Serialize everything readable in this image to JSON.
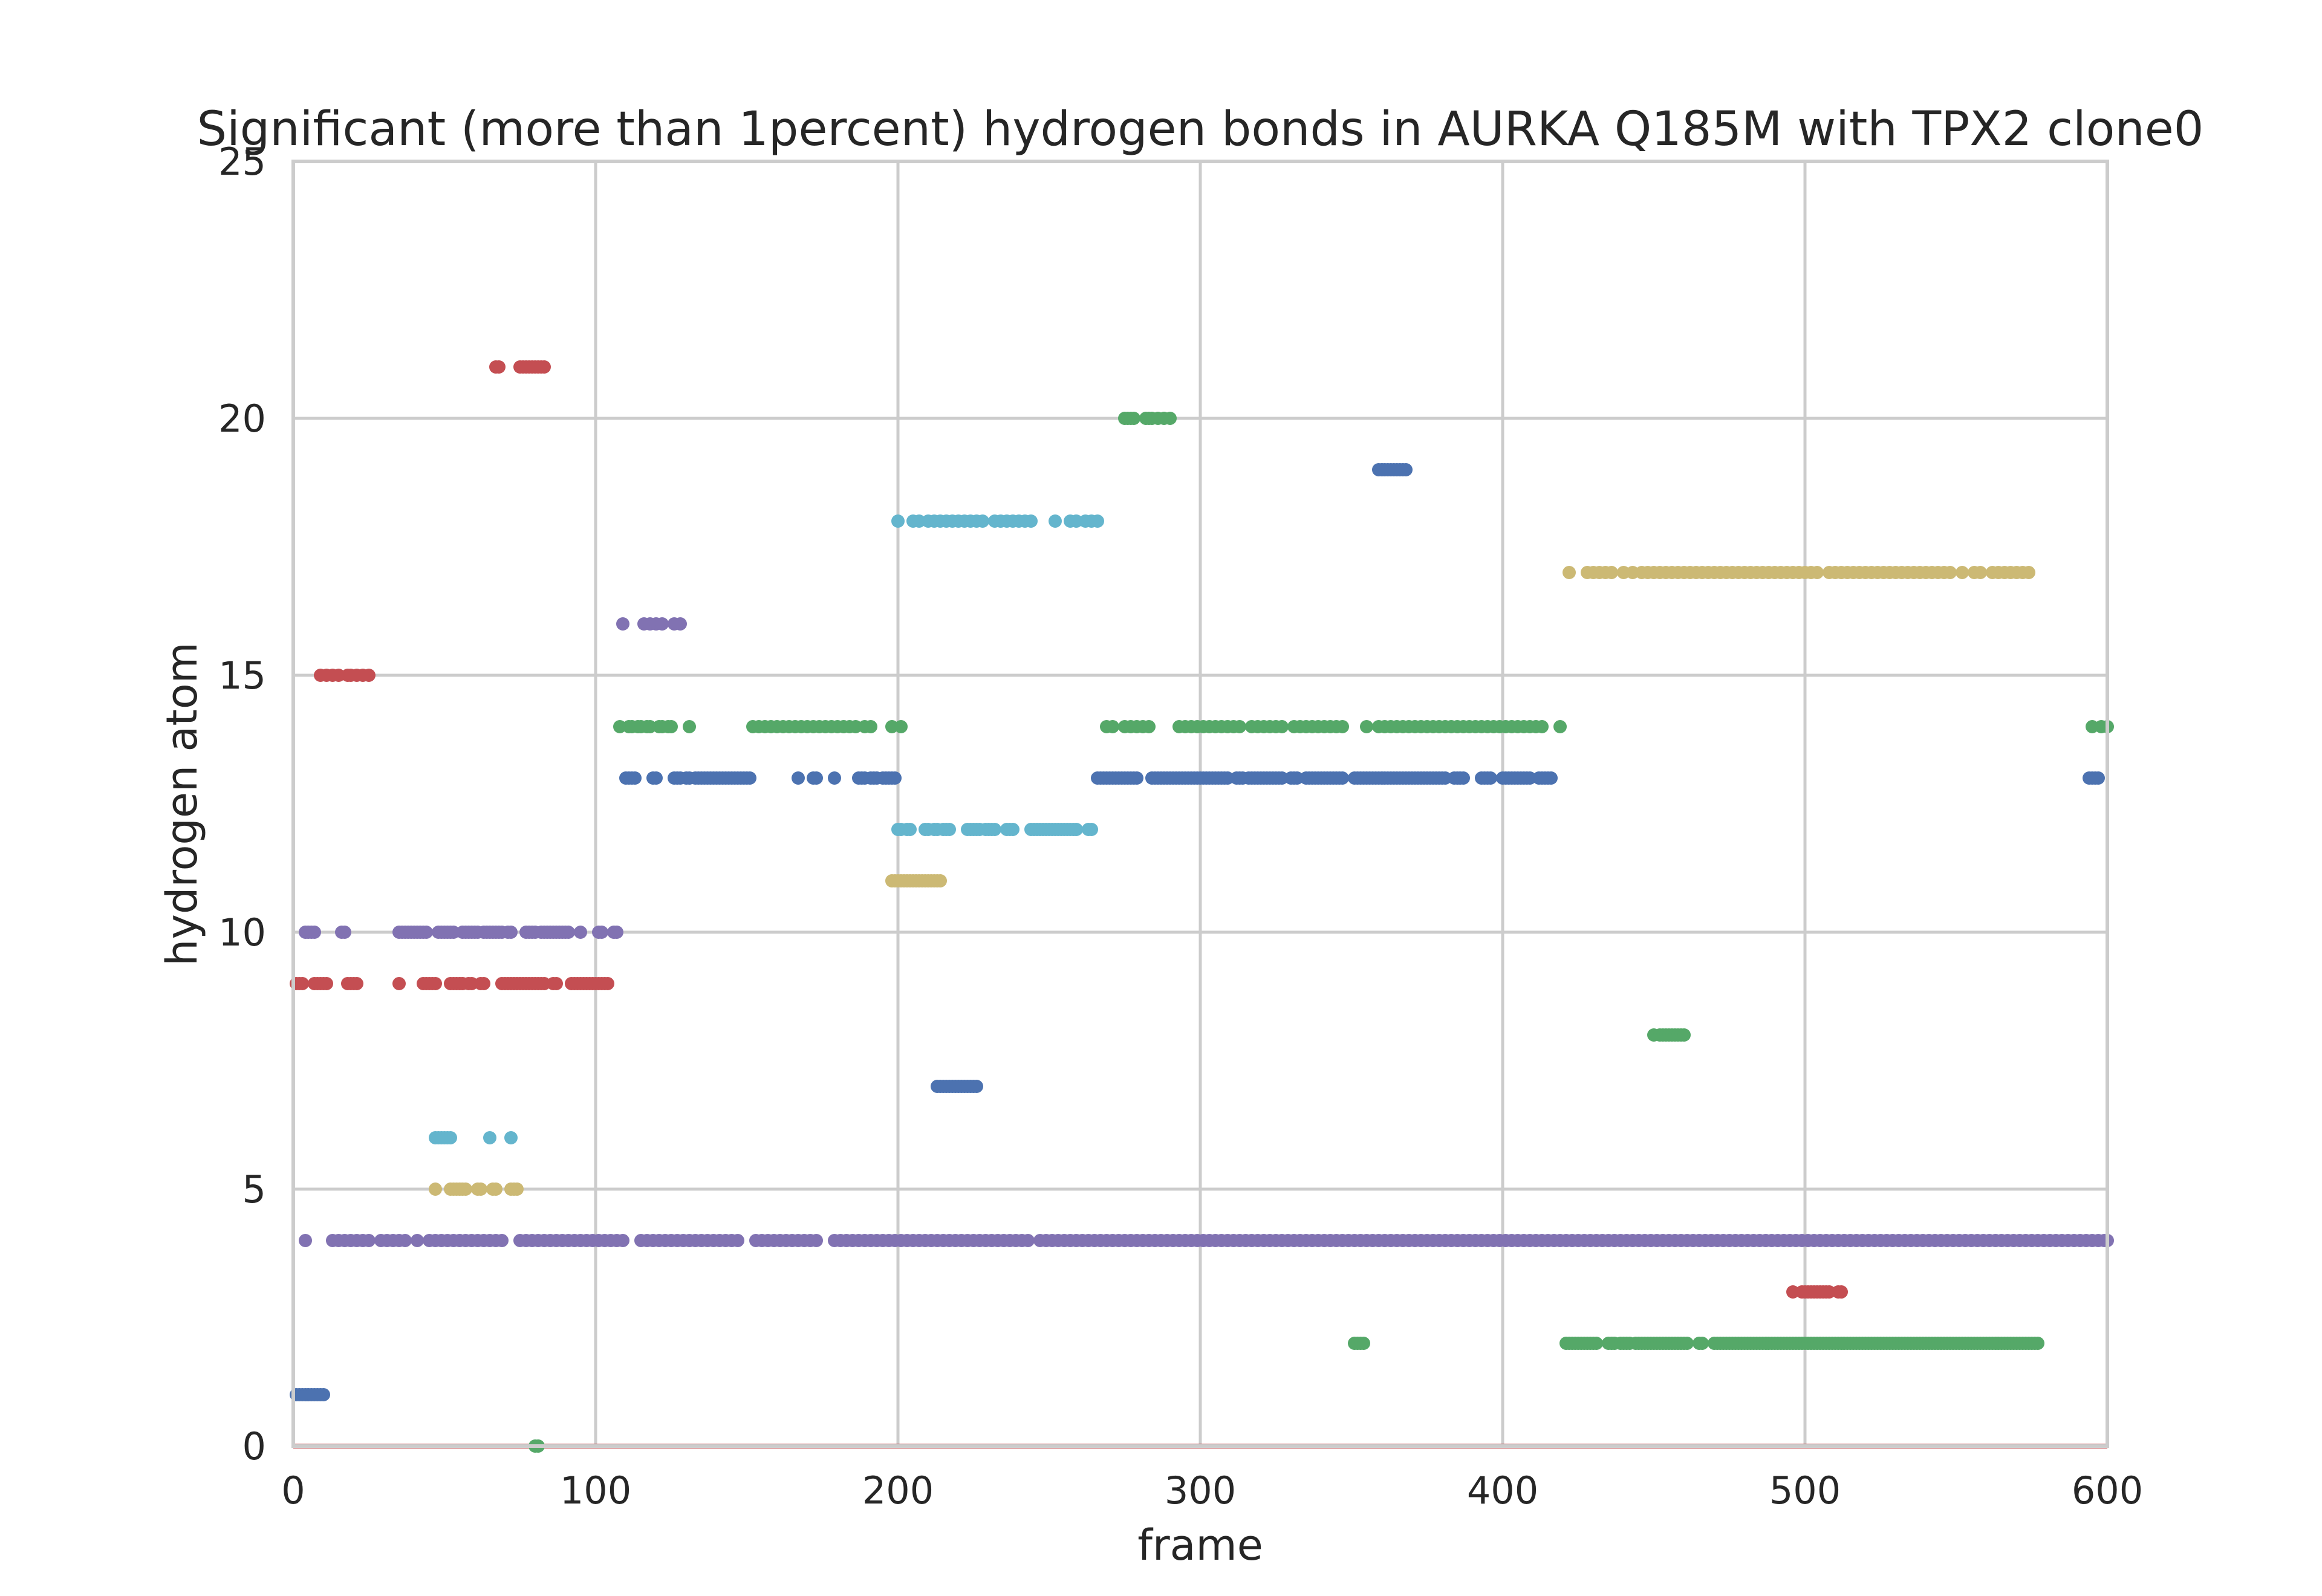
{
  "chart_data": {
    "type": "scatter",
    "title": "Significant (more than 1percent) hydrogen bonds in AURKA Q185M with TPX2 clone0",
    "xlabel": "frame",
    "ylabel": "hydrogen atom",
    "xlim": [
      0,
      600
    ],
    "ylim": [
      0,
      25
    ],
    "xticks": [
      "0",
      "100",
      "200",
      "300",
      "400",
      "500",
      "600"
    ],
    "yticks": [
      "0",
      "5",
      "10",
      "15",
      "20",
      "25"
    ],
    "grid": true,
    "legend": "none",
    "baseline": {
      "y": 0,
      "color": "#c44e52",
      "x_range": [
        0,
        600
      ]
    },
    "series": [
      {
        "y": 21,
        "color": "#c44e52",
        "x": [
          67,
          68,
          75,
          76,
          77,
          78,
          79,
          80,
          81,
          82,
          83
        ]
      },
      {
        "y": 20,
        "color": "#55a868",
        "x": [
          275,
          276,
          277,
          278,
          282,
          283,
          284,
          286,
          288,
          290
        ]
      },
      {
        "y": 19,
        "color": "#4c72b0",
        "x": [
          359,
          360,
          361,
          362,
          363,
          364,
          365,
          366,
          367,
          368
        ]
      },
      {
        "y": 18,
        "color": "#64b5cd",
        "x": [
          200,
          205,
          207,
          210,
          212,
          214,
          216,
          218,
          220,
          222,
          224,
          226,
          228,
          232,
          234,
          236,
          238,
          240,
          242,
          244,
          252,
          257,
          259,
          262,
          264,
          266
        ]
      },
      {
        "y": 17,
        "color": "#ccb974",
        "x": [
          422,
          428,
          430,
          432,
          434,
          436,
          440,
          443,
          446,
          448,
          450,
          452,
          454,
          456,
          458,
          460,
          462,
          464,
          466,
          468,
          470,
          472,
          474,
          476,
          478,
          480,
          482,
          484,
          486,
          488,
          490,
          492,
          494,
          496,
          498,
          500,
          502,
          504,
          508,
          510,
          512,
          514,
          516,
          518,
          520,
          522,
          524,
          526,
          528,
          530,
          532,
          534,
          536,
          538,
          540,
          542,
          544,
          546,
          548,
          552,
          556,
          558,
          562,
          564,
          566,
          568,
          570,
          572,
          574
        ]
      },
      {
        "y": 16,
        "color": "#8172b2",
        "x": [
          109,
          116,
          118,
          120,
          122,
          126,
          128
        ]
      },
      {
        "y": 15,
        "color": "#c44e52",
        "x": [
          9,
          11,
          13,
          15,
          18,
          19,
          21,
          23,
          25
        ]
      },
      {
        "y": 14,
        "color": "#55a868",
        "x": [
          108,
          111,
          112,
          114,
          115,
          117,
          118,
          121,
          122,
          124,
          125,
          131,
          152,
          154,
          156,
          158,
          160,
          162,
          164,
          166,
          168,
          170,
          172,
          174,
          176,
          178,
          180,
          182,
          184,
          186,
          189,
          191,
          198,
          201,
          269,
          271,
          275,
          277,
          279,
          281,
          283,
          293,
          295,
          297,
          299,
          301,
          303,
          305,
          307,
          309,
          311,
          313,
          317,
          319,
          321,
          323,
          325,
          327,
          331,
          333,
          335,
          337,
          339,
          341,
          343,
          345,
          347,
          355,
          359,
          361,
          363,
          365,
          367,
          369,
          371,
          373,
          375,
          377,
          379,
          381,
          383,
          385,
          387,
          389,
          391,
          393,
          395,
          397,
          399,
          401,
          403,
          405,
          407,
          409,
          411,
          413,
          419,
          595,
          598,
          600
        ]
      },
      {
        "y": 13,
        "color": "#4c72b0",
        "x": [
          110,
          111,
          112,
          113,
          119,
          120,
          126,
          127,
          128,
          130,
          131,
          133,
          134,
          135,
          136,
          137,
          138,
          139,
          140,
          141,
          142,
          143,
          144,
          145,
          146,
          147,
          148,
          149,
          150,
          151,
          167,
          172,
          173,
          179,
          187,
          188,
          189,
          191,
          192,
          193,
          195,
          196,
          197,
          198,
          199,
          266,
          267,
          268,
          269,
          270,
          271,
          272,
          273,
          274,
          275,
          276,
          277,
          278,
          279,
          284,
          285,
          286,
          287,
          288,
          289,
          290,
          291,
          292,
          293,
          294,
          295,
          296,
          297,
          298,
          299,
          300,
          301,
          302,
          303,
          304,
          305,
          306,
          307,
          308,
          309,
          312,
          313,
          314,
          316,
          317,
          318,
          319,
          320,
          321,
          322,
          323,
          324,
          325,
          326,
          327,
          330,
          331,
          332,
          335,
          336,
          337,
          338,
          339,
          340,
          341,
          342,
          343,
          344,
          345,
          346,
          347,
          351,
          352,
          353,
          354,
          355,
          356,
          357,
          358,
          359,
          360,
          361,
          362,
          363,
          364,
          365,
          366,
          367,
          368,
          369,
          370,
          371,
          372,
          373,
          374,
          375,
          376,
          377,
          378,
          379,
          380,
          381,
          384,
          385,
          386,
          387,
          393,
          394,
          395,
          396,
          400,
          401,
          402,
          403,
          404,
          405,
          406,
          407,
          408,
          409,
          412,
          413,
          414,
          415,
          416,
          594,
          595,
          596,
          597
        ]
      },
      {
        "y": 12,
        "color": "#64b5cd",
        "x": [
          200,
          201,
          203,
          204,
          209,
          210,
          212,
          213,
          215,
          216,
          217,
          223,
          224,
          225,
          226,
          227,
          229,
          230,
          231,
          232,
          236,
          237,
          238,
          244,
          245,
          246,
          247,
          248,
          249,
          250,
          251,
          252,
          253,
          254,
          255,
          256,
          257,
          258,
          259,
          263,
          264
        ]
      },
      {
        "y": 11,
        "color": "#ccb974",
        "x": [
          198,
          199,
          200,
          201,
          202,
          203,
          204,
          205,
          206,
          207,
          208,
          209,
          210,
          211,
          212,
          213,
          214
        ]
      },
      {
        "y": 10,
        "color": "#8172b2",
        "x": [
          4,
          5,
          6,
          7,
          16,
          17,
          35,
          36,
          37,
          38,
          39,
          40,
          41,
          42,
          43,
          44,
          48,
          49,
          50,
          51,
          52,
          53,
          56,
          57,
          58,
          59,
          60,
          61,
          63,
          64,
          65,
          66,
          67,
          68,
          69,
          71,
          72,
          77,
          78,
          79,
          80,
          82,
          83,
          84,
          85,
          86,
          87,
          88,
          89,
          90,
          91,
          95,
          101,
          102,
          106,
          107
        ]
      },
      {
        "y": 9,
        "color": "#c44e52",
        "x": [
          1,
          2,
          3,
          7,
          8,
          9,
          10,
          11,
          18,
          19,
          20,
          21,
          35,
          43,
          44,
          45,
          46,
          47,
          52,
          53,
          54,
          55,
          56,
          58,
          59,
          62,
          63,
          69,
          70,
          71,
          72,
          73,
          74,
          75,
          76,
          77,
          78,
          79,
          80,
          81,
          82,
          83,
          86,
          87,
          92,
          93,
          94,
          95,
          96,
          97,
          98,
          99,
          100,
          101,
          102,
          103,
          104
        ]
      },
      {
        "y": 8,
        "color": "#55a868",
        "x": [
          450,
          452,
          453,
          454,
          455,
          456,
          457,
          458,
          459,
          460
        ]
      },
      {
        "y": 7,
        "color": "#4c72b0",
        "x": [
          213,
          214,
          215,
          216,
          217,
          218,
          219,
          220,
          221,
          222,
          223,
          224,
          225,
          226
        ]
      },
      {
        "y": 6,
        "color": "#64b5cd",
        "x": [
          47,
          48,
          49,
          50,
          51,
          52,
          65,
          72
        ]
      },
      {
        "y": 5,
        "color": "#ccb974",
        "x": [
          47,
          52,
          53,
          54,
          55,
          56,
          57,
          61,
          62,
          66,
          67,
          72,
          73,
          74
        ]
      },
      {
        "y": 4,
        "color": "#8172b2",
        "x": [
          4,
          13,
          15,
          17,
          19,
          21,
          23,
          25,
          29,
          31,
          33,
          35,
          37,
          41,
          45,
          47,
          49,
          51,
          53,
          55,
          57,
          59,
          61,
          63,
          65,
          67,
          69,
          75,
          77,
          79,
          81,
          83,
          85,
          87,
          89,
          91,
          93,
          95,
          97,
          99,
          101,
          103,
          105,
          107,
          109,
          115,
          117,
          119,
          121,
          123,
          125,
          127,
          129,
          131,
          133,
          135,
          137,
          139,
          141,
          143,
          145,
          147,
          153,
          155,
          157,
          159,
          161,
          163,
          165,
          167,
          169,
          171,
          173,
          179,
          181,
          183,
          185,
          187,
          189,
          191,
          193,
          195,
          197,
          199,
          201,
          203,
          205,
          207,
          209,
          211,
          213,
          215,
          217,
          219,
          221,
          223,
          225,
          227,
          229,
          231,
          233,
          235,
          237,
          239,
          241,
          243,
          247,
          249,
          251,
          253,
          255,
          257,
          259,
          261,
          263,
          265,
          267,
          269,
          271,
          273,
          275,
          277,
          279,
          281,
          283,
          285,
          287,
          289,
          291,
          293,
          295,
          297,
          299,
          301,
          303,
          305,
          307,
          309,
          311,
          313,
          315,
          317,
          319,
          321,
          323,
          325,
          327,
          329,
          331,
          333,
          335,
          337,
          339,
          341,
          343,
          345,
          347,
          349,
          351,
          353,
          355,
          357,
          359,
          361,
          363,
          365,
          367,
          369,
          371,
          373,
          375,
          377,
          379,
          381,
          383,
          385,
          387,
          389,
          391,
          393,
          395,
          397,
          399,
          401,
          403,
          405,
          407,
          409,
          411,
          413,
          415,
          417,
          419,
          421,
          423,
          425,
          427,
          429,
          431,
          433,
          435,
          437,
          439,
          441,
          443,
          445,
          447,
          449,
          451,
          453,
          455,
          457,
          459,
          461,
          463,
          465,
          467,
          469,
          471,
          473,
          475,
          477,
          479,
          481,
          483,
          485,
          487,
          489,
          491,
          493,
          495,
          497,
          499,
          501,
          503,
          505,
          507,
          509,
          511,
          513,
          515,
          517,
          519,
          521,
          523,
          525,
          527,
          529,
          531,
          533,
          535,
          537,
          539,
          541,
          543,
          545,
          547,
          549,
          551,
          553,
          555,
          557,
          559,
          561,
          563,
          565,
          567,
          569,
          571,
          573,
          575,
          577,
          579,
          581,
          583,
          585,
          587,
          589,
          591,
          593,
          595,
          597,
          599,
          600
        ]
      },
      {
        "y": 3,
        "color": "#c44e52",
        "x": [
          496,
          499,
          500,
          501,
          502,
          503,
          504,
          505,
          506,
          507,
          508,
          511,
          512
        ]
      },
      {
        "y": 2,
        "color": "#55a868",
        "x": [
          351,
          352,
          353,
          354,
          421,
          422,
          423,
          424,
          425,
          426,
          427,
          428,
          429,
          430,
          431,
          435,
          436,
          437,
          439,
          440,
          441,
          442,
          444,
          445,
          446,
          447,
          448,
          449,
          450,
          451,
          452,
          453,
          454,
          455,
          456,
          457,
          458,
          459,
          460,
          461,
          465,
          466,
          470,
          471,
          472,
          473,
          474,
          475,
          476,
          477,
          478,
          479,
          480,
          481,
          482,
          483,
          484,
          485,
          486,
          487,
          488,
          489,
          490,
          491,
          492,
          493,
          494,
          495,
          496,
          497,
          498,
          499,
          500,
          501,
          502,
          503,
          504,
          505,
          506,
          507,
          508,
          509,
          510,
          511,
          512,
          513,
          514,
          515,
          516,
          517,
          518,
          519,
          520,
          521,
          522,
          523,
          524,
          525,
          526,
          527,
          528,
          529,
          530,
          531,
          532,
          533,
          534,
          535,
          536,
          537,
          538,
          539,
          540,
          541,
          542,
          543,
          544,
          545,
          546,
          547,
          548,
          549,
          550,
          551,
          552,
          553,
          554,
          555,
          556,
          557,
          558,
          559,
          560,
          561,
          562,
          563,
          564,
          565,
          566,
          567,
          568,
          569,
          570,
          571,
          572,
          573,
          574,
          575,
          576,
          577
        ]
      },
      {
        "y": 1,
        "color": "#4c72b0",
        "x": [
          1,
          2,
          3,
          4,
          5,
          6,
          7,
          8,
          9,
          10
        ]
      },
      {
        "y": 0,
        "color": "#55a868",
        "x": [
          80,
          81
        ]
      }
    ]
  }
}
